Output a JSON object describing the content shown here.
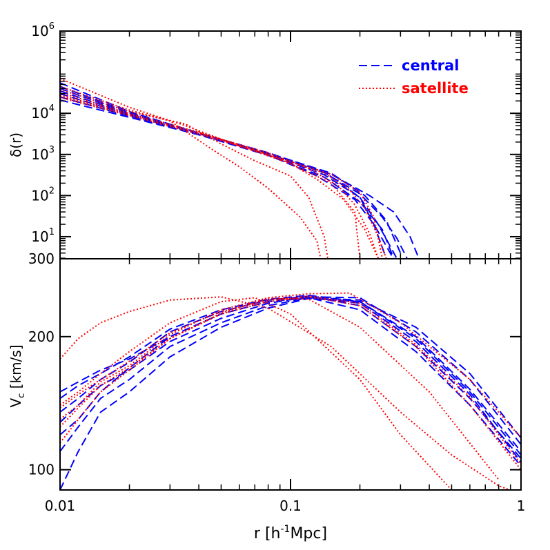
{
  "chart_data": {
    "type": "line",
    "xlabel_main": "r",
    "xlabel_unit": "[h",
    "xlabel_sup": "-1",
    "xlabel_tail": "Mpc]",
    "xscale": "log",
    "xlim": [
      0.01,
      1
    ],
    "xticks": [
      {
        "value": 0.01,
        "label": "0.01"
      },
      {
        "value": 0.1,
        "label": "0.1"
      },
      {
        "value": 1,
        "label": "1"
      }
    ],
    "legend": {
      "placement": "top-right",
      "entries": [
        {
          "label": "central",
          "color": "#0000ff",
          "style": "dashed"
        },
        {
          "label": "satellite",
          "color": "#ff0000",
          "style": "dotted"
        }
      ]
    },
    "panels": [
      {
        "name": "density-panel",
        "ylabel": "δ(r)",
        "yscale": "log",
        "ylim": [
          2.9,
          1000000
        ],
        "yticks": [
          {
            "value": 10,
            "base": "10",
            "exp": "1"
          },
          {
            "value": 100,
            "base": "10",
            "exp": "2"
          },
          {
            "value": 1000,
            "base": "10",
            "exp": "3"
          },
          {
            "value": 10000,
            "base": "10",
            "exp": "4"
          },
          {
            "value": 1000000,
            "base": "10",
            "exp": "6"
          }
        ],
        "series": [
          {
            "group": "central",
            "x": [
              0.01,
              0.02,
              0.04,
              0.08,
              0.14,
              0.2,
              0.24,
              0.27,
              0.3
            ],
            "y": [
              55000,
              11000,
              3300,
              1100,
              380,
              90,
              20,
              6,
              2
            ]
          },
          {
            "group": "central",
            "x": [
              0.01,
              0.02,
              0.04,
              0.08,
              0.14,
              0.2,
              0.25,
              0.29,
              0.32
            ],
            "y": [
              40000,
              10000,
              3200,
              1050,
              360,
              110,
              30,
              9,
              3
            ]
          },
          {
            "group": "central",
            "x": [
              0.01,
              0.02,
              0.04,
              0.08,
              0.15,
              0.22,
              0.28,
              0.33,
              0.36
            ],
            "y": [
              30000,
              9000,
              3100,
              1000,
              330,
              100,
              40,
              10,
              3
            ]
          },
          {
            "group": "central",
            "x": [
              0.01,
              0.02,
              0.04,
              0.08,
              0.13,
              0.19,
              0.23,
              0.26,
              0.29
            ],
            "y": [
              25000,
              8500,
              3000,
              980,
              300,
              80,
              20,
              6,
              2
            ]
          },
          {
            "group": "central",
            "x": [
              0.01,
              0.02,
              0.04,
              0.08,
              0.14,
              0.2,
              0.25,
              0.28
            ],
            "y": [
              21000,
              8000,
              3000,
              950,
              280,
              70,
              15,
              3
            ]
          },
          {
            "group": "central",
            "x": [
              0.01,
              0.02,
              0.04,
              0.08,
              0.14,
              0.2,
              0.23,
              0.26
            ],
            "y": [
              35000,
              9500,
              3200,
              1000,
              320,
              90,
              20,
              3
            ]
          },
          {
            "group": "central",
            "x": [
              0.01,
              0.02,
              0.04,
              0.08,
              0.15,
              0.21,
              0.26,
              0.3
            ],
            "y": [
              45000,
              10500,
              3300,
              1080,
              350,
              100,
              25,
              4
            ]
          },
          {
            "group": "satellite",
            "x": [
              0.01,
              0.02,
              0.035,
              0.06,
              0.1,
              0.15,
              0.19,
              0.2
            ],
            "y": [
              70000,
              14000,
              5000,
              1600,
              600,
              200,
              40,
              3
            ]
          },
          {
            "group": "satellite",
            "x": [
              0.01,
              0.02,
              0.03,
              0.045,
              0.06,
              0.08,
              0.11,
              0.13,
              0.135
            ],
            "y": [
              45000,
              12000,
              6500,
              1400,
              500,
              150,
              30,
              8,
              3
            ]
          },
          {
            "group": "satellite",
            "x": [
              0.01,
              0.02,
              0.035,
              0.05,
              0.07,
              0.1,
              0.12,
              0.14,
              0.145
            ],
            "y": [
              38000,
              11000,
              5500,
              1800,
              700,
              300,
              90,
              10,
              3
            ]
          },
          {
            "group": "satellite",
            "x": [
              0.01,
              0.02,
              0.04,
              0.07,
              0.1,
              0.13,
              0.17,
              0.21,
              0.24
            ],
            "y": [
              32000,
              10000,
              3500,
              1300,
              600,
              250,
              80,
              15,
              3
            ]
          },
          {
            "group": "satellite",
            "x": [
              0.01,
              0.02,
              0.04,
              0.08,
              0.12,
              0.16,
              0.19,
              0.22,
              0.24
            ],
            "y": [
              28000,
              9500,
              3300,
              1100,
              450,
              180,
              60,
              12,
              3
            ]
          },
          {
            "group": "satellite",
            "x": [
              0.01,
              0.02,
              0.04,
              0.08,
              0.14,
              0.18,
              0.21,
              0.24,
              0.26
            ],
            "y": [
              26000,
              9000,
              3200,
              1000,
              350,
              140,
              50,
              10,
              3
            ]
          },
          {
            "group": "satellite",
            "x": [
              0.01,
              0.02,
              0.04,
              0.08,
              0.15,
              0.2,
              0.23,
              0.25
            ],
            "y": [
              24000,
              8800,
              3100,
              1000,
              330,
              120,
              30,
              3
            ]
          }
        ]
      },
      {
        "name": "velocity-panel",
        "ylabel_main": "V",
        "ylabel_sub": "c",
        "ylabel_unit": "[km/s]",
        "yscale": "log",
        "ylim": [
          90,
          300
        ],
        "yticks": [
          {
            "value": 100,
            "label": "100"
          },
          {
            "value": 200,
            "label": "200"
          },
          {
            "value": 300,
            "label": "300"
          }
        ],
        "series": [
          {
            "group": "central",
            "x": [
              0.01,
              0.012,
              0.015,
              0.02,
              0.03,
              0.05,
              0.08,
              0.12,
              0.2,
              0.35,
              0.6,
              1
            ],
            "y": [
              120,
              130,
              150,
              170,
              200,
              225,
              240,
              245,
              230,
              185,
              140,
              102
            ]
          },
          {
            "group": "central",
            "x": [
              0.01,
              0.012,
              0.015,
              0.02,
              0.03,
              0.05,
              0.08,
              0.12,
              0.2,
              0.35,
              0.6,
              1
            ],
            "y": [
              135,
              145,
              160,
              175,
              205,
              228,
              242,
              247,
              235,
              190,
              145,
              106
            ]
          },
          {
            "group": "central",
            "x": [
              0.01,
              0.012,
              0.015,
              0.02,
              0.03,
              0.05,
              0.08,
              0.12,
              0.2,
              0.35,
              0.6,
              1
            ],
            "y": [
              145,
              155,
              165,
              180,
              208,
              230,
              243,
              248,
              240,
              200,
              152,
              110
            ]
          },
          {
            "group": "central",
            "x": [
              0.01,
              0.012,
              0.015,
              0.02,
              0.03,
              0.05,
              0.08,
              0.12,
              0.2,
              0.35,
              0.6,
              1
            ],
            "y": [
              128,
              140,
              155,
              168,
              195,
              220,
              238,
              246,
              245,
              205,
              160,
              114
            ]
          },
          {
            "group": "central",
            "x": [
              0.01,
              0.012,
              0.015,
              0.02,
              0.03,
              0.05,
              0.08,
              0.12,
              0.2,
              0.35,
              0.6,
              1
            ],
            "y": [
              150,
              158,
              168,
              178,
              200,
              225,
              240,
              246,
              238,
              195,
              148,
              104
            ]
          },
          {
            "group": "central",
            "x": [
              0.01,
              0.012,
              0.015,
              0.02,
              0.03,
              0.05,
              0.08,
              0.12,
              0.2,
              0.35,
              0.6,
              1
            ],
            "y": [
              110,
              125,
              145,
              160,
              190,
              215,
              235,
              245,
              242,
              210,
              165,
              118
            ]
          },
          {
            "group": "central",
            "x": [
              0.01,
              0.012,
              0.015,
              0.02,
              0.03,
              0.05,
              0.08,
              0.12,
              0.2,
              0.35,
              0.6,
              1
            ],
            "y": [
              90,
              110,
              135,
              150,
              180,
              210,
              232,
              244,
              240,
              198,
              150,
              108
            ]
          },
          {
            "group": "satellite",
            "x": [
              0.01,
              0.012,
              0.015,
              0.02,
              0.03,
              0.05,
              0.08,
              0.15,
              0.3,
              0.5,
              0.8,
              1
            ],
            "y": [
              178,
              198,
              215,
              228,
              242,
              246,
              232,
              190,
              135,
              108,
              92,
              88
            ]
          },
          {
            "group": "satellite",
            "x": [
              0.01,
              0.012,
              0.015,
              0.02,
              0.03,
              0.05,
              0.07,
              0.1,
              0.2,
              0.3,
              0.5
            ],
            "y": [
              140,
              150,
              165,
              185,
              215,
              240,
              245,
              225,
              160,
              120,
              90
            ]
          },
          {
            "group": "satellite",
            "x": [
              0.01,
              0.012,
              0.015,
              0.02,
              0.03,
              0.05,
              0.08,
              0.12,
              0.2,
              0.4,
              0.8
            ],
            "y": [
              115,
              130,
              150,
              168,
              198,
              226,
              244,
              243,
              210,
              150,
              95
            ]
          },
          {
            "group": "satellite",
            "x": [
              0.01,
              0.012,
              0.015,
              0.02,
              0.03,
              0.05,
              0.08,
              0.12,
              0.18,
              0.3,
              0.6,
              1
            ],
            "y": [
              130,
              140,
              158,
              172,
              202,
              230,
              245,
              250,
              251,
              215,
              160,
              118
            ]
          },
          {
            "group": "satellite",
            "x": [
              0.01,
              0.012,
              0.015,
              0.02,
              0.03,
              0.05,
              0.08,
              0.12,
              0.2,
              0.35,
              0.6,
              1
            ],
            "y": [
              125,
              138,
              155,
              170,
              198,
              225,
              240,
              246,
              235,
              190,
              140,
              100
            ]
          },
          {
            "group": "satellite",
            "x": [
              0.01,
              0.012,
              0.015,
              0.02,
              0.03,
              0.05,
              0.08,
              0.12,
              0.2,
              0.35,
              0.6,
              1
            ],
            "y": [
              138,
              148,
              160,
              176,
              204,
              228,
              242,
              247,
              238,
              192,
              146,
              103
            ]
          }
        ]
      }
    ]
  }
}
